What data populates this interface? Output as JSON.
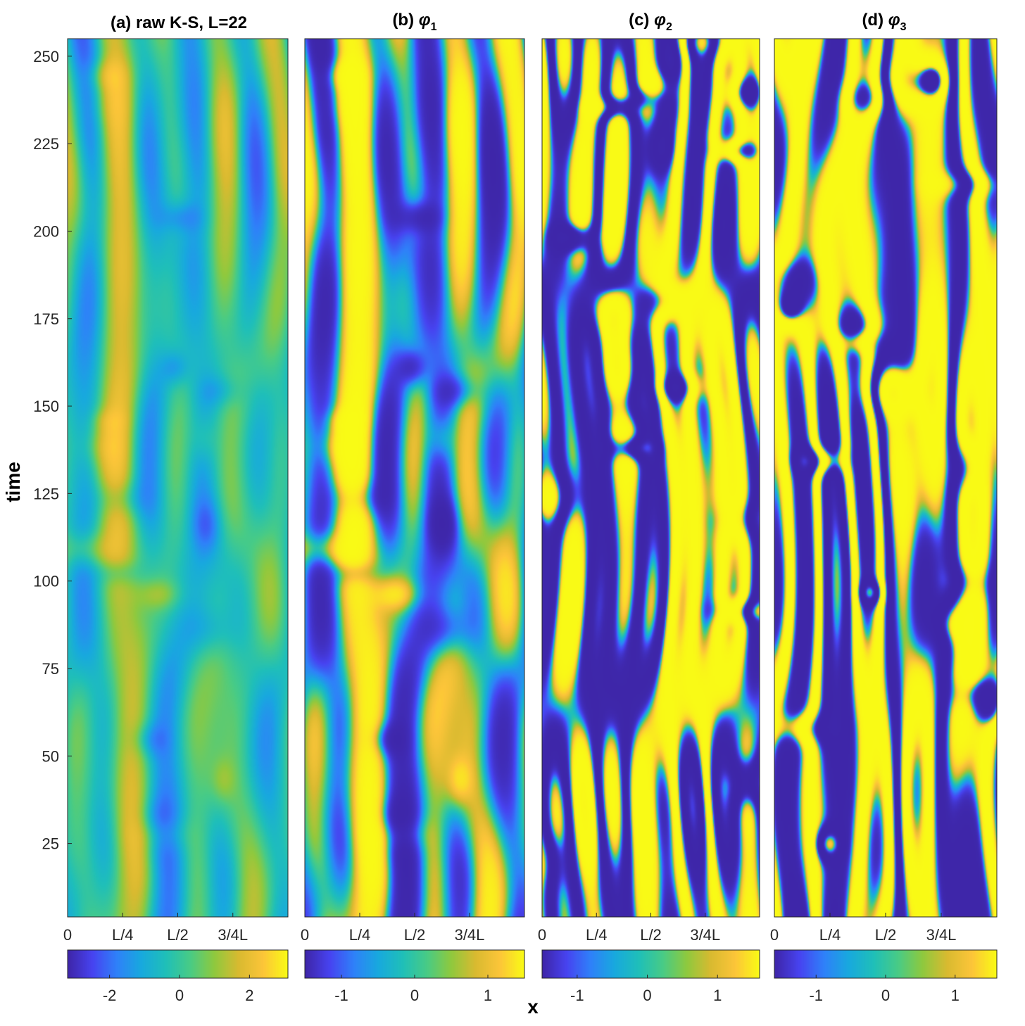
{
  "figure": {
    "xlabel": "x",
    "ylabel": "time",
    "colormap": [
      "#3e26a8",
      "#4743f0",
      "#2f81f9",
      "#18a9de",
      "#1fbfb9",
      "#48cb86",
      "#8fc93e",
      "#d9ba30",
      "#fcc539",
      "#f9fb15"
    ]
  },
  "chart_data": [
    {
      "type": "heatmap",
      "title_prefix": "(a)",
      "title_symbol": "raw K-S, L=22",
      "title_sub": "",
      "xticks": [
        "0",
        "L/4",
        "L/2",
        "3/4L"
      ],
      "ylabel": "time",
      "yticks": [
        "25",
        "50",
        "75",
        "100",
        "125",
        "150",
        "175",
        "200",
        "225",
        "250"
      ],
      "ylim": [
        4,
        255
      ],
      "colorbar": {
        "clim": [
          -3.2,
          3.1
        ],
        "ticks": [
          "-2",
          "0",
          "2"
        ],
        "tick_values": [
          -2,
          0,
          2
        ]
      },
      "field": {
        "seed": 11,
        "sharpness": 1.0,
        "lines": false,
        "band_scale": 0.7
      }
    },
    {
      "type": "heatmap",
      "title_prefix": "(b)",
      "title_symbol": "φ",
      "title_sub": "1",
      "xticks": [
        "0",
        "L/4",
        "L/2",
        "3/4L"
      ],
      "ylim": [
        4,
        255
      ],
      "colorbar": {
        "clim": [
          -1.5,
          1.5
        ],
        "ticks": [
          "-1",
          "0",
          "1"
        ],
        "tick_values": [
          -1,
          0,
          1
        ]
      },
      "field": {
        "seed": 11,
        "sharpness": 2.6,
        "lines": false,
        "band_scale": 1.0
      }
    },
    {
      "type": "heatmap",
      "title_prefix": "(c)",
      "title_symbol": "φ",
      "title_sub": "2",
      "xticks": [
        "0",
        "L/4",
        "L/2",
        "3/4L"
      ],
      "ylim": [
        4,
        255
      ],
      "colorbar": {
        "clim": [
          -1.5,
          1.6
        ],
        "ticks": [
          "-1",
          "0",
          "1"
        ],
        "tick_values": [
          -1,
          0,
          1
        ]
      },
      "field": {
        "seed": 23,
        "sharpness": 3.2,
        "lines": true,
        "band_scale": 1.0
      }
    },
    {
      "type": "heatmap",
      "title_prefix": "(d)",
      "title_symbol": "φ",
      "title_sub": "3",
      "xticks": [
        "0",
        "L/4",
        "L/2",
        "3/4L"
      ],
      "ylim": [
        4,
        255
      ],
      "colorbar": {
        "clim": [
          -1.6,
          1.6
        ],
        "ticks": [
          "-1",
          "0",
          "1"
        ],
        "tick_values": [
          -1,
          0,
          1
        ]
      },
      "field": {
        "seed": 37,
        "sharpness": 3.4,
        "lines": true,
        "band_scale": 1.1
      }
    }
  ]
}
